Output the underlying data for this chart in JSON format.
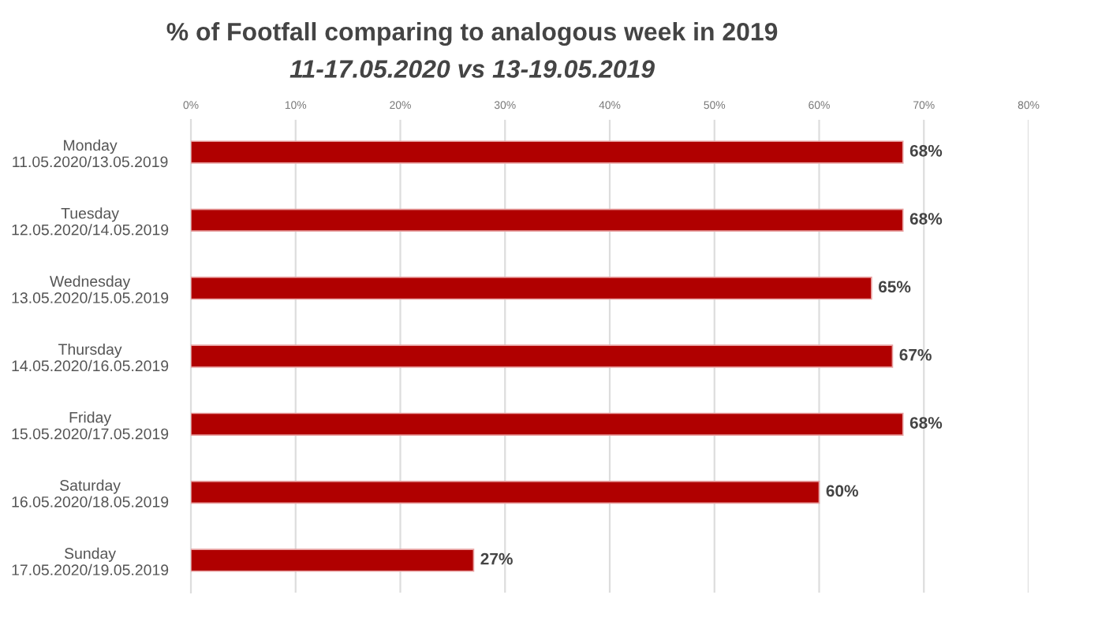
{
  "chart_data": {
    "type": "bar",
    "orientation": "horizontal",
    "title": "% of Footfall comparing to analogous week in 2019",
    "subtitle": "11-17.05.2020 vs 13-19.05.2019",
    "categories": [
      "Monday\n11.05.2020/13.05.2019",
      "Tuesday\n12.05.2020/14.05.2019",
      "Wednesday\n13.05.2020/15.05.2019",
      "Thursday\n14.05.2020/16.05.2019",
      "Friday\n15.05.2020/17.05.2019",
      "Saturday\n16.05.2020/18.05.2019",
      "Sunday\n17.05.2020/19.05.2019"
    ],
    "values": [
      68,
      68,
      65,
      67,
      68,
      60,
      27
    ],
    "value_labels": [
      "68%",
      "68%",
      "65%",
      "67%",
      "68%",
      "60%",
      "27%"
    ],
    "color": "#b00000",
    "xlim": [
      0,
      80
    ],
    "xticks": [
      {
        "value": 0,
        "label": "0%"
      },
      {
        "value": 10,
        "label": "10%"
      },
      {
        "value": 20,
        "label": "20%"
      },
      {
        "value": 30,
        "label": "30%"
      },
      {
        "value": 40,
        "label": "40%"
      },
      {
        "value": 50,
        "label": "50%"
      },
      {
        "value": 60,
        "label": "60%"
      },
      {
        "value": 70,
        "label": "70%"
      },
      {
        "value": 80,
        "label": "80%"
      }
    ],
    "grid": "x"
  }
}
